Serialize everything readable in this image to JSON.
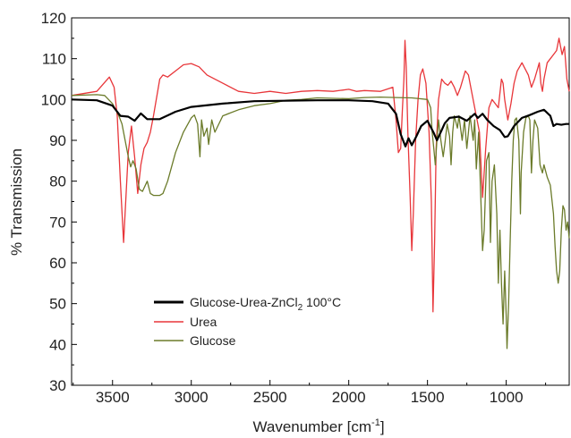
{
  "chart_data": {
    "type": "line",
    "xlabel": "Wavenumber [cm",
    "xlabel_sup": "-1",
    "xlabel_end": "]",
    "ylabel": "% Transmission",
    "xlim": [
      3760,
      600
    ],
    "ylim": [
      30,
      120
    ],
    "x_reversed": true,
    "xticks": [
      3500,
      3000,
      2500,
      2000,
      1500,
      1000
    ],
    "yticks": [
      30,
      40,
      50,
      60,
      70,
      80,
      90,
      100,
      110,
      120
    ],
    "grid": false,
    "legend_position": "lower-left",
    "series": [
      {
        "name": "Glucose-Urea-ZnCl",
        "name_sub": "2",
        "name_suffix": " 100°C",
        "color": "#000000",
        "points": [
          [
            3760,
            100
          ],
          [
            3600,
            99.8
          ],
          [
            3500,
            98.5
          ],
          [
            3450,
            96
          ],
          [
            3400,
            95.8
          ],
          [
            3360,
            94.8
          ],
          [
            3320,
            96.6
          ],
          [
            3280,
            95.2
          ],
          [
            3200,
            95.2
          ],
          [
            3100,
            97
          ],
          [
            3000,
            98.2
          ],
          [
            2800,
            99
          ],
          [
            2600,
            99.6
          ],
          [
            2400,
            99.7
          ],
          [
            2200,
            99.8
          ],
          [
            2000,
            99.8
          ],
          [
            1850,
            99.6
          ],
          [
            1750,
            99
          ],
          [
            1700,
            96.5
          ],
          [
            1670,
            91.5
          ],
          [
            1640,
            88.5
          ],
          [
            1620,
            90.5
          ],
          [
            1600,
            88.8
          ],
          [
            1570,
            91
          ],
          [
            1540,
            93.5
          ],
          [
            1500,
            94.8
          ],
          [
            1460,
            91.8
          ],
          [
            1440,
            90
          ],
          [
            1410,
            92.5
          ],
          [
            1390,
            94.2
          ],
          [
            1360,
            95.5
          ],
          [
            1300,
            95.8
          ],
          [
            1250,
            94.8
          ],
          [
            1200,
            96.5
          ],
          [
            1180,
            95.5
          ],
          [
            1150,
            96.5
          ],
          [
            1120,
            95
          ],
          [
            1080,
            93.5
          ],
          [
            1040,
            92.5
          ],
          [
            1010,
            90.8
          ],
          [
            990,
            91
          ],
          [
            950,
            93.5
          ],
          [
            900,
            95.5
          ],
          [
            850,
            96.2
          ],
          [
            800,
            97
          ],
          [
            760,
            97.5
          ],
          [
            720,
            96
          ],
          [
            700,
            93.5
          ],
          [
            680,
            94
          ],
          [
            650,
            93.8
          ],
          [
            620,
            94
          ],
          [
            600,
            94
          ]
        ]
      },
      {
        "name": "Urea",
        "color": "#e8363a",
        "points": [
          [
            3760,
            101
          ],
          [
            3600,
            102
          ],
          [
            3520,
            105.5
          ],
          [
            3490,
            103
          ],
          [
            3470,
            96
          ],
          [
            3450,
            80
          ],
          [
            3430,
            65
          ],
          [
            3415,
            76
          ],
          [
            3400,
            87
          ],
          [
            3380,
            93.5
          ],
          [
            3360,
            86
          ],
          [
            3340,
            77
          ],
          [
            3320,
            84
          ],
          [
            3300,
            88
          ],
          [
            3280,
            89.5
          ],
          [
            3260,
            92
          ],
          [
            3240,
            96
          ],
          [
            3200,
            105
          ],
          [
            3180,
            106
          ],
          [
            3150,
            105.5
          ],
          [
            3100,
            107
          ],
          [
            3050,
            108.5
          ],
          [
            3000,
            108.8
          ],
          [
            2950,
            108
          ],
          [
            2900,
            106
          ],
          [
            2800,
            104
          ],
          [
            2700,
            102
          ],
          [
            2600,
            101.5
          ],
          [
            2500,
            102
          ],
          [
            2400,
            101.5
          ],
          [
            2300,
            102
          ],
          [
            2200,
            102.2
          ],
          [
            2100,
            102
          ],
          [
            2000,
            102.5
          ],
          [
            1950,
            102
          ],
          [
            1900,
            102.2
          ],
          [
            1800,
            102
          ],
          [
            1720,
            103
          ],
          [
            1700,
            95
          ],
          [
            1685,
            87
          ],
          [
            1670,
            88
          ],
          [
            1660,
            97
          ],
          [
            1650,
            105
          ],
          [
            1643,
            114.5
          ],
          [
            1635,
            108
          ],
          [
            1625,
            92
          ],
          [
            1610,
            76
          ],
          [
            1600,
            63
          ],
          [
            1590,
            72
          ],
          [
            1575,
            90
          ],
          [
            1560,
            100
          ],
          [
            1545,
            106
          ],
          [
            1530,
            107.5
          ],
          [
            1510,
            104
          ],
          [
            1490,
            92
          ],
          [
            1475,
            75
          ],
          [
            1465,
            48
          ],
          [
            1455,
            65
          ],
          [
            1445,
            88
          ],
          [
            1430,
            100
          ],
          [
            1410,
            105
          ],
          [
            1390,
            104
          ],
          [
            1370,
            103.5
          ],
          [
            1350,
            104.5
          ],
          [
            1330,
            103
          ],
          [
            1310,
            101
          ],
          [
            1290,
            103
          ],
          [
            1260,
            107
          ],
          [
            1240,
            106
          ],
          [
            1220,
            102
          ],
          [
            1200,
            98
          ],
          [
            1170,
            92
          ],
          [
            1150,
            76
          ],
          [
            1130,
            88
          ],
          [
            1110,
            98
          ],
          [
            1090,
            100
          ],
          [
            1070,
            99
          ],
          [
            1050,
            98
          ],
          [
            1030,
            105
          ],
          [
            1020,
            104
          ],
          [
            1010,
            100
          ],
          [
            990,
            95
          ],
          [
            970,
            99
          ],
          [
            950,
            104
          ],
          [
            930,
            107
          ],
          [
            900,
            109
          ],
          [
            860,
            106
          ],
          [
            840,
            103
          ],
          [
            820,
            105
          ],
          [
            790,
            109
          ],
          [
            780,
            104
          ],
          [
            770,
            102
          ],
          [
            760,
            105
          ],
          [
            740,
            109
          ],
          [
            720,
            110
          ],
          [
            700,
            111
          ],
          [
            680,
            112
          ],
          [
            665,
            115
          ],
          [
            655,
            113
          ],
          [
            645,
            111
          ],
          [
            630,
            113
          ],
          [
            615,
            105
          ],
          [
            600,
            102
          ]
        ]
      },
      {
        "name": "Glucose",
        "color": "#6b7b2a",
        "points": [
          [
            3760,
            101
          ],
          [
            3600,
            101.2
          ],
          [
            3550,
            101
          ],
          [
            3500,
            99
          ],
          [
            3460,
            96
          ],
          [
            3440,
            94
          ],
          [
            3420,
            90
          ],
          [
            3400,
            86
          ],
          [
            3385,
            83.5
          ],
          [
            3370,
            85
          ],
          [
            3350,
            83
          ],
          [
            3330,
            78
          ],
          [
            3310,
            77.5
          ],
          [
            3280,
            80
          ],
          [
            3260,
            77
          ],
          [
            3240,
            76.5
          ],
          [
            3200,
            76.5
          ],
          [
            3180,
            77
          ],
          [
            3150,
            80
          ],
          [
            3100,
            87
          ],
          [
            3050,
            92
          ],
          [
            3000,
            95.5
          ],
          [
            2980,
            96.2
          ],
          [
            2960,
            94
          ],
          [
            2945,
            86
          ],
          [
            2935,
            95
          ],
          [
            2920,
            91
          ],
          [
            2900,
            93
          ],
          [
            2890,
            89
          ],
          [
            2870,
            95
          ],
          [
            2850,
            92
          ],
          [
            2800,
            96
          ],
          [
            2700,
            97.5
          ],
          [
            2600,
            98.5
          ],
          [
            2500,
            99
          ],
          [
            2400,
            99.8
          ],
          [
            2300,
            100
          ],
          [
            2200,
            100.4
          ],
          [
            2100,
            100.3
          ],
          [
            2000,
            100.2
          ],
          [
            1900,
            100.5
          ],
          [
            1800,
            100.6
          ],
          [
            1700,
            100.5
          ],
          [
            1600,
            100.4
          ],
          [
            1550,
            100.2
          ],
          [
            1500,
            100
          ],
          [
            1480,
            98
          ],
          [
            1470,
            92
          ],
          [
            1460,
            88
          ],
          [
            1450,
            84
          ],
          [
            1440,
            90
          ],
          [
            1430,
            95
          ],
          [
            1415,
            90
          ],
          [
            1400,
            86
          ],
          [
            1390,
            89
          ],
          [
            1375,
            94
          ],
          [
            1360,
            91
          ],
          [
            1350,
            84
          ],
          [
            1340,
            92
          ],
          [
            1330,
            96
          ],
          [
            1310,
            93
          ],
          [
            1300,
            96
          ],
          [
            1280,
            90
          ],
          [
            1265,
            95
          ],
          [
            1250,
            88
          ],
          [
            1240,
            92
          ],
          [
            1230,
            96
          ],
          [
            1210,
            90
          ],
          [
            1200,
            95
          ],
          [
            1190,
            83
          ],
          [
            1175,
            92
          ],
          [
            1165,
            80
          ],
          [
            1150,
            63
          ],
          [
            1140,
            68
          ],
          [
            1125,
            85
          ],
          [
            1110,
            87
          ],
          [
            1100,
            65
          ],
          [
            1090,
            80
          ],
          [
            1075,
            84
          ],
          [
            1060,
            72
          ],
          [
            1050,
            55
          ],
          [
            1040,
            68
          ],
          [
            1030,
            55
          ],
          [
            1020,
            45
          ],
          [
            1010,
            58
          ],
          [
            1000,
            47
          ],
          [
            995,
            39
          ],
          [
            985,
            50
          ],
          [
            975,
            65
          ],
          [
            965,
            80
          ],
          [
            955,
            90
          ],
          [
            945,
            95
          ],
          [
            935,
            95.5
          ],
          [
            920,
            90
          ],
          [
            910,
            72
          ],
          [
            905,
            82
          ],
          [
            890,
            92
          ],
          [
            875,
            95.5
          ],
          [
            860,
            96
          ],
          [
            850,
            95
          ],
          [
            840,
            82
          ],
          [
            830,
            90
          ],
          [
            820,
            95
          ],
          [
            800,
            93
          ],
          [
            785,
            84
          ],
          [
            770,
            82
          ],
          [
            760,
            84
          ],
          [
            740,
            81
          ],
          [
            720,
            79
          ],
          [
            700,
            72
          ],
          [
            690,
            64
          ],
          [
            680,
            58
          ],
          [
            670,
            55
          ],
          [
            660,
            58
          ],
          [
            650,
            68
          ],
          [
            640,
            74
          ],
          [
            630,
            73
          ],
          [
            620,
            68
          ],
          [
            610,
            70
          ],
          [
            600,
            66
          ]
        ]
      }
    ]
  }
}
